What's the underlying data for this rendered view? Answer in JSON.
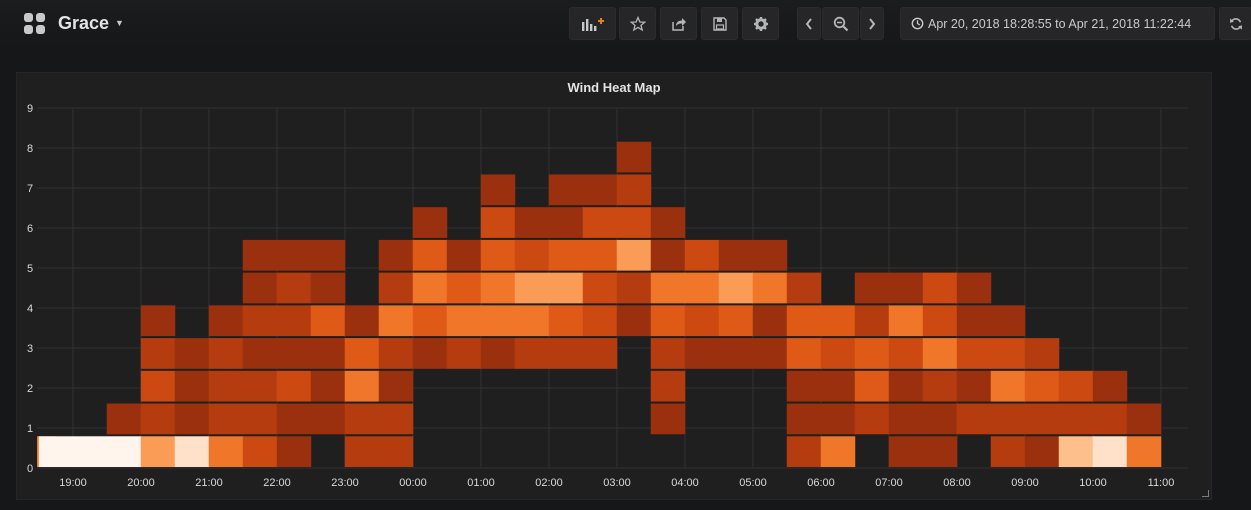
{
  "dashboard": {
    "title": "Grace"
  },
  "navbar": {
    "buttons": [
      {
        "name": "add-panel-button",
        "icon": "add-panel-icon"
      },
      {
        "name": "star-button",
        "icon": "star-icon"
      },
      {
        "name": "share-button",
        "icon": "share-icon"
      },
      {
        "name": "save-button",
        "icon": "save-icon"
      },
      {
        "name": "settings-button",
        "icon": "gear-icon"
      },
      {
        "name": "time-back-button",
        "icon": "chevron-left-icon"
      },
      {
        "name": "zoom-out-button",
        "icon": "zoom-out-icon"
      },
      {
        "name": "time-forward-button",
        "icon": "chevron-right-icon"
      },
      {
        "name": "refresh-button",
        "icon": "refresh-icon"
      }
    ],
    "time_range": "Apr 20, 2018 18:28:55 to Apr 21, 2018 11:22:44"
  },
  "panel": {
    "title": "Wind Heat Map"
  },
  "chart_data": {
    "type": "heatmap",
    "title": "Wind Heat Map",
    "xlabel": "",
    "ylabel": "",
    "ylim": [
      0,
      9
    ],
    "yticks": [
      "0",
      "1",
      "2",
      "3",
      "4",
      "5",
      "6",
      "7",
      "8",
      "9"
    ],
    "xticks": [
      "19:00",
      "20:00",
      "21:00",
      "22:00",
      "23:00",
      "00:00",
      "01:00",
      "02:00",
      "03:00",
      "04:00",
      "05:00",
      "06:00",
      "07:00",
      "08:00",
      "09:00",
      "10:00",
      "11:00"
    ],
    "grid": true,
    "color_scale": [
      "#6b1f0b",
      "#7e260d",
      "#9a300d",
      "#b53c0e",
      "#cc4a12",
      "#e05a17",
      "#f0772a",
      "#fa9c55",
      "#fdbf8c",
      "#fee1c8",
      "#fff5ec"
    ],
    "bucket_count_per_row": 34,
    "columns": [
      {
        "x": "18:30",
        "cells": [
          [
            0,
            6
          ]
        ]
      },
      {
        "x": "18:45",
        "cells": [
          [
            0,
            10
          ]
        ]
      },
      {
        "x": "19:15",
        "cells": [
          [
            0,
            10
          ]
        ]
      },
      {
        "x": "19:45",
        "cells": [
          [
            0,
            10
          ],
          [
            1,
            2
          ]
        ]
      },
      {
        "x": "20:15",
        "cells": [
          [
            0,
            7
          ],
          [
            1,
            3
          ],
          [
            2,
            4
          ],
          [
            3,
            3
          ],
          [
            4,
            2
          ]
        ]
      },
      {
        "x": "20:45",
        "cells": [
          [
            0,
            9
          ],
          [
            1,
            2
          ],
          [
            2,
            2
          ],
          [
            3,
            2
          ]
        ]
      },
      {
        "x": "21:15",
        "cells": [
          [
            0,
            6
          ],
          [
            1,
            3
          ],
          [
            2,
            3
          ],
          [
            3,
            3
          ],
          [
            4,
            2
          ]
        ]
      },
      {
        "x": "21:45",
        "cells": [
          [
            0,
            4
          ],
          [
            1,
            3
          ],
          [
            2,
            3
          ],
          [
            3,
            2
          ],
          [
            4,
            3
          ],
          [
            5,
            2
          ],
          [
            6,
            2
          ]
        ]
      },
      {
        "x": "22:15",
        "cells": [
          [
            0,
            2
          ],
          [
            1,
            2
          ],
          [
            2,
            4
          ],
          [
            3,
            2
          ],
          [
            4,
            3
          ],
          [
            5,
            3
          ],
          [
            6,
            2
          ]
        ]
      },
      {
        "x": "22:45",
        "cells": [
          [
            1,
            2
          ],
          [
            2,
            2
          ],
          [
            3,
            2
          ],
          [
            4,
            5
          ],
          [
            5,
            2
          ],
          [
            6,
            2
          ]
        ]
      },
      {
        "x": "23:15",
        "cells": [
          [
            0,
            3
          ],
          [
            1,
            3
          ],
          [
            2,
            6
          ],
          [
            3,
            5
          ],
          [
            4,
            2
          ]
        ]
      },
      {
        "x": "23:45",
        "cells": [
          [
            0,
            3
          ],
          [
            1,
            3
          ],
          [
            2,
            2
          ],
          [
            3,
            3
          ],
          [
            4,
            6
          ],
          [
            5,
            3
          ],
          [
            6,
            2
          ]
        ]
      },
      {
        "x": "00:15",
        "cells": [
          [
            3,
            2
          ],
          [
            4,
            5
          ],
          [
            5,
            6
          ],
          [
            6,
            5
          ],
          [
            7,
            2
          ]
        ]
      },
      {
        "x": "00:45",
        "cells": [
          [
            3,
            3
          ],
          [
            4,
            6
          ],
          [
            5,
            5
          ],
          [
            6,
            2
          ]
        ]
      },
      {
        "x": "01:15",
        "cells": [
          [
            3,
            2
          ],
          [
            4,
            6
          ],
          [
            5,
            6
          ],
          [
            6,
            5
          ],
          [
            7,
            4
          ],
          [
            8,
            2
          ]
        ]
      },
      {
        "x": "01:45",
        "cells": [
          [
            3,
            3
          ],
          [
            4,
            6
          ],
          [
            5,
            7
          ],
          [
            6,
            4
          ],
          [
            7,
            2
          ]
        ]
      },
      {
        "x": "02:15",
        "cells": [
          [
            3,
            3
          ],
          [
            4,
            5
          ],
          [
            5,
            7
          ],
          [
            6,
            5
          ],
          [
            7,
            2
          ],
          [
            8,
            2
          ]
        ]
      },
      {
        "x": "02:45",
        "cells": [
          [
            3,
            3
          ],
          [
            4,
            4
          ],
          [
            5,
            4
          ],
          [
            6,
            5
          ],
          [
            7,
            4
          ],
          [
            8,
            2
          ]
        ]
      },
      {
        "x": "03:15",
        "cells": [
          [
            4,
            2
          ],
          [
            5,
            3
          ],
          [
            6,
            7
          ],
          [
            7,
            4
          ],
          [
            8,
            3
          ],
          [
            9,
            2
          ]
        ]
      },
      {
        "x": "03:45",
        "cells": [
          [
            1,
            2
          ],
          [
            2,
            3
          ],
          [
            3,
            3
          ],
          [
            4,
            5
          ],
          [
            5,
            6
          ],
          [
            6,
            2
          ],
          [
            7,
            2
          ]
        ]
      },
      {
        "x": "04:15",
        "cells": [
          [
            3,
            2
          ],
          [
            4,
            4
          ],
          [
            5,
            6
          ],
          [
            6,
            4
          ]
        ]
      },
      {
        "x": "04:45",
        "cells": [
          [
            3,
            2
          ],
          [
            4,
            5
          ],
          [
            5,
            7
          ],
          [
            6,
            2
          ]
        ]
      },
      {
        "x": "05:15",
        "cells": [
          [
            3,
            2
          ],
          [
            4,
            2
          ],
          [
            5,
            6
          ],
          [
            6,
            2
          ]
        ]
      },
      {
        "x": "05:45",
        "cells": [
          [
            0,
            3
          ],
          [
            1,
            2
          ],
          [
            2,
            2
          ],
          [
            3,
            5
          ],
          [
            4,
            5
          ],
          [
            5,
            3
          ]
        ]
      },
      {
        "x": "06:15",
        "cells": [
          [
            0,
            6
          ],
          [
            1,
            2
          ],
          [
            2,
            2
          ],
          [
            3,
            4
          ],
          [
            4,
            5
          ]
        ]
      },
      {
        "x": "06:45",
        "cells": [
          [
            1,
            3
          ],
          [
            2,
            5
          ],
          [
            3,
            5
          ],
          [
            4,
            3
          ],
          [
            5,
            2
          ]
        ]
      },
      {
        "x": "07:15",
        "cells": [
          [
            0,
            2
          ],
          [
            1,
            2
          ],
          [
            2,
            2
          ],
          [
            3,
            4
          ],
          [
            4,
            6
          ],
          [
            5,
            2
          ]
        ]
      },
      {
        "x": "07:45",
        "cells": [
          [
            0,
            2
          ],
          [
            1,
            2
          ],
          [
            2,
            3
          ],
          [
            3,
            6
          ],
          [
            4,
            4
          ],
          [
            5,
            4
          ]
        ]
      },
      {
        "x": "08:15",
        "cells": [
          [
            1,
            3
          ],
          [
            2,
            2
          ],
          [
            3,
            4
          ],
          [
            4,
            2
          ],
          [
            5,
            2
          ]
        ]
      },
      {
        "x": "08:45",
        "cells": [
          [
            0,
            3
          ],
          [
            1,
            3
          ],
          [
            2,
            6
          ],
          [
            3,
            4
          ],
          [
            4,
            2
          ]
        ]
      },
      {
        "x": "09:15",
        "cells": [
          [
            0,
            2
          ],
          [
            1,
            3
          ],
          [
            2,
            5
          ],
          [
            3,
            3
          ]
        ]
      },
      {
        "x": "09:45",
        "cells": [
          [
            0,
            8
          ],
          [
            1,
            3
          ],
          [
            2,
            4
          ]
        ]
      },
      {
        "x": "10:15",
        "cells": [
          [
            0,
            9
          ],
          [
            1,
            3
          ],
          [
            2,
            2
          ]
        ]
      },
      {
        "x": "10:45",
        "cells": [
          [
            0,
            6
          ],
          [
            1,
            2
          ]
        ]
      }
    ]
  }
}
